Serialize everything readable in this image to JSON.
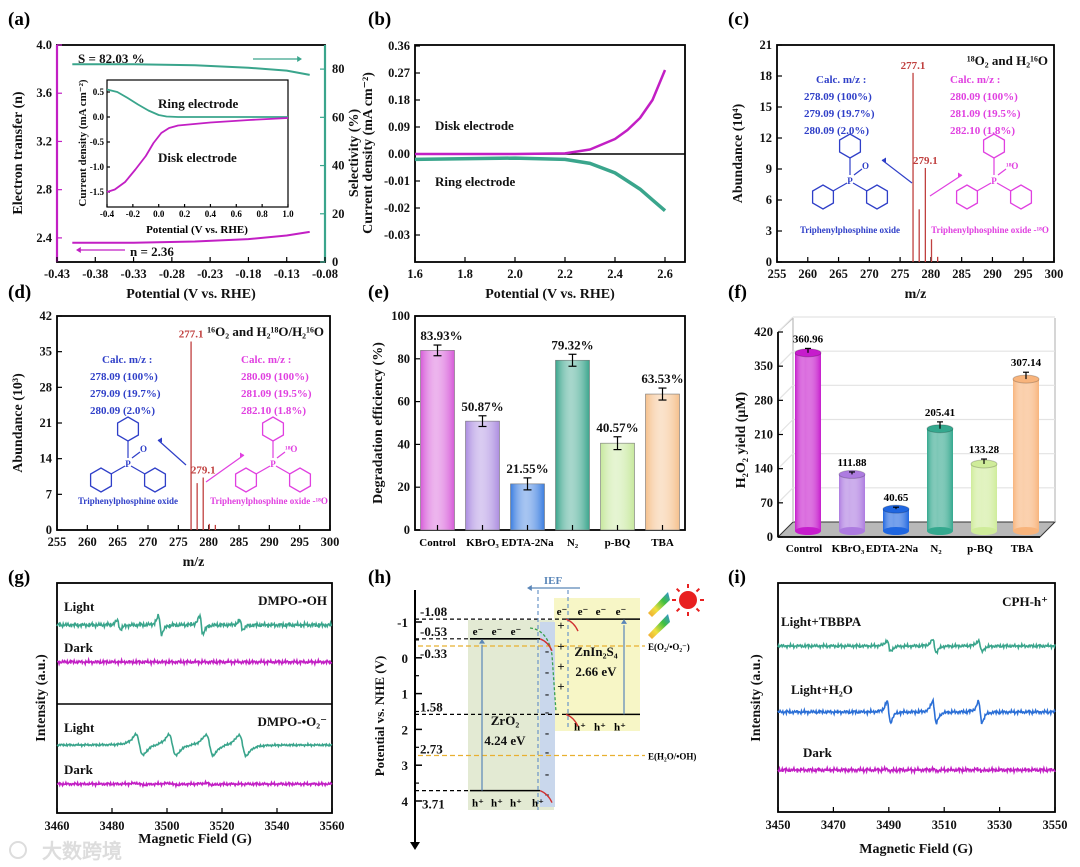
{
  "figure": {
    "panel_labels": [
      "(a)",
      "(b)",
      "(c)",
      "(d)",
      "(e)",
      "(f)",
      "(g)",
      "(h)",
      "(i)"
    ],
    "watermark": "大数跨境",
    "colors": {
      "magenta": "#c21fc4",
      "teal": "#3aa58c",
      "blue": "#2f3fc8",
      "pink": "#e040e0",
      "red": "#c0403f",
      "orange": "#e8b030"
    }
  },
  "chart_data": [
    {
      "type": "line",
      "xlabel": "Potential (V vs. RHE)",
      "ylabel_left": "Electron transfer (n)",
      "ylabel_right": "Selectivity (%)",
      "xlim": [
        -0.43,
        -0.08
      ],
      "ylim_left": [
        2.2,
        4.0
      ],
      "ylim_right": [
        0,
        90
      ],
      "xticks": [
        "-0.43",
        "-0.38",
        "-0.33",
        "-0.28",
        "-0.23",
        "-0.18",
        "-0.13",
        "-0.08"
      ],
      "yticks_left": [
        "2.4",
        "2.8",
        "3.2",
        "3.6",
        "4.0"
      ],
      "yticks_right": [
        "0",
        "20",
        "40",
        "60",
        "80"
      ],
      "series": [
        {
          "name": "Selectivity",
          "axis": "right",
          "points": [
            [
              -0.41,
              82.03
            ],
            [
              -0.33,
              82.0
            ],
            [
              -0.25,
              81.6
            ],
            [
              -0.18,
              80.6
            ],
            [
              -0.13,
              79.4
            ],
            [
              -0.1,
              77.6
            ]
          ]
        },
        {
          "name": "Electron transfer",
          "axis": "left",
          "points": [
            [
              -0.41,
              2.36
            ],
            [
              -0.33,
              2.36
            ],
            [
              -0.25,
              2.37
            ],
            [
              -0.18,
              2.39
            ],
            [
              -0.13,
              2.42
            ],
            [
              -0.1,
              2.45
            ]
          ]
        }
      ],
      "annotations": {
        "selectivity": "S = 82.03 %",
        "n": "n = 2.36"
      },
      "inset": {
        "xlabel": "Potential (V vs. RHE)",
        "ylabel": "Current density (mA cm⁻²)",
        "xlim": [
          -0.4,
          1.0
        ],
        "ylim": [
          -1.8,
          0.74
        ],
        "xticks": [
          "-0.4",
          "-0.2",
          "0.0",
          "0.2",
          "0.4",
          "0.6",
          "0.8",
          "1.0"
        ],
        "yticks": [
          "0.5",
          "0.0",
          "-0.5",
          "-1.0",
          "-1.5"
        ],
        "series": [
          {
            "name": "Ring electrode",
            "points": [
              [
                -0.4,
                0.55
              ],
              [
                -0.32,
                0.5
              ],
              [
                -0.24,
                0.38
              ],
              [
                -0.16,
                0.25
              ],
              [
                -0.08,
                0.13
              ],
              [
                0.0,
                0.04
              ],
              [
                0.06,
                0.01
              ],
              [
                0.15,
                0.0
              ],
              [
                1.0,
                0.0
              ]
            ]
          },
          {
            "name": "Disk electrode",
            "points": [
              [
                -0.4,
                -1.5
              ],
              [
                -0.34,
                -1.45
              ],
              [
                -0.26,
                -1.3
              ],
              [
                -0.18,
                -1.05
              ],
              [
                -0.1,
                -0.78
              ],
              [
                -0.04,
                -0.52
              ],
              [
                0.02,
                -0.32
              ],
              [
                0.08,
                -0.22
              ],
              [
                0.15,
                -0.17
              ],
              [
                0.4,
                -0.11
              ],
              [
                0.7,
                -0.06
              ],
              [
                1.0,
                -0.02
              ]
            ]
          }
        ],
        "labels": {
          "ring": "Ring electrode",
          "disk": "Disk electrode"
        }
      }
    },
    {
      "type": "line",
      "xlabel": "Potential (V vs. RHE)",
      "ylabel": "Current density (mA cm⁻²)",
      "xlim": [
        1.6,
        2.68
      ],
      "xticks": [
        "1.6",
        "1.8",
        "2.0",
        "2.2",
        "2.4",
        "2.6"
      ],
      "yticks": [
        "0.36",
        "0.27",
        "0.18",
        "0.09",
        "0.00",
        "-0.01",
        "-0.02",
        "-0.03"
      ],
      "y_scale": "split: 0.09 per major tick above zero, 0.01 per major tick below zero",
      "series": [
        {
          "name": "Disk electrode",
          "points": [
            [
              1.6,
              0.0
            ],
            [
              2.0,
              0.0
            ],
            [
              2.2,
              0.002
            ],
            [
              2.3,
              0.015
            ],
            [
              2.4,
              0.05
            ],
            [
              2.45,
              0.08
            ],
            [
              2.5,
              0.12
            ],
            [
              2.55,
              0.18
            ],
            [
              2.6,
              0.28
            ]
          ]
        },
        {
          "name": "Ring electrode",
          "points": [
            [
              1.6,
              -0.002
            ],
            [
              2.0,
              -0.0015
            ],
            [
              2.2,
              -0.002
            ],
            [
              2.3,
              -0.0035
            ],
            [
              2.4,
              -0.007
            ],
            [
              2.5,
              -0.013
            ],
            [
              2.55,
              -0.017
            ],
            [
              2.6,
              -0.021
            ]
          ]
        }
      ],
      "labels": {
        "disk": "Disk electrode",
        "ring": "Ring electrode"
      }
    },
    {
      "type": "bar",
      "subtype": "mass spectrum",
      "title": "¹⁸O₂ and H₂¹⁶O",
      "xlabel": "m/z",
      "ylabel": "Abundance (10⁴)",
      "xlim": [
        255,
        300
      ],
      "ylim": [
        0,
        21
      ],
      "xticks": [
        "255",
        "260",
        "265",
        "270",
        "275",
        "280",
        "285",
        "290",
        "295",
        "300"
      ],
      "yticks": [
        "0",
        "3",
        "6",
        "9",
        "12",
        "15",
        "18",
        "21"
      ],
      "peaks": [
        [
          277.1,
          18.3
        ],
        [
          278.1,
          5.1
        ],
        [
          279.1,
          9.1
        ],
        [
          280.1,
          2.2
        ],
        [
          281.1,
          0.5
        ]
      ],
      "peak_labels": [
        "277.1",
        "279.1"
      ],
      "calc_left": {
        "title": "Calc. m/z :",
        "lines": [
          "278.09 (100%)",
          "279.09 (19.7%)",
          "280.09 (2.0%)"
        ],
        "name": "Triphenylphosphine oxide"
      },
      "calc_right": {
        "title": "Calc. m/z :",
        "lines": [
          "280.09 (100%)",
          "281.09 (19.5%)",
          "282.10 (1.8%)"
        ],
        "name": "Triphenylphosphine oxide -¹⁸O"
      },
      "atoms": {
        "P": "P",
        "O": "O",
        "O18": "¹⁸O"
      }
    },
    {
      "type": "bar",
      "subtype": "mass spectrum",
      "title": "¹⁶O₂ and H₂¹⁸O/H₂¹⁶O",
      "xlabel": "m/z",
      "ylabel": "Abundance (10³)",
      "xlim": [
        255,
        300
      ],
      "ylim": [
        0,
        42
      ],
      "xticks": [
        "255",
        "260",
        "265",
        "270",
        "275",
        "280",
        "285",
        "290",
        "295",
        "300"
      ],
      "yticks": [
        "0",
        "7",
        "14",
        "21",
        "28",
        "35",
        "42"
      ],
      "peaks": [
        [
          277.1,
          37.0
        ],
        [
          278.1,
          9.2
        ],
        [
          279.1,
          10.3
        ],
        [
          280.1,
          1.2
        ],
        [
          281.1,
          1.0
        ]
      ],
      "peak_labels": [
        "277.1",
        "279.1"
      ],
      "calc_left": {
        "title": "Calc. m/z :",
        "lines": [
          "278.09 (100%)",
          "279.09 (19.7%)",
          "280.09 (2.0%)"
        ],
        "name": "Triphenylphosphine oxide"
      },
      "calc_right": {
        "title": "Calc. m/z :",
        "lines": [
          "280.09 (100%)",
          "281.09 (19.5%)",
          "282.10 (1.8%)"
        ],
        "name": "Triphenylphosphine oxide -¹⁸O"
      },
      "atoms": {
        "P": "P",
        "O": "O",
        "O18": "¹⁸O"
      }
    },
    {
      "type": "bar",
      "ylabel": "Degradation efficiency (%)",
      "ylim": [
        0,
        100
      ],
      "yticks": [
        "0",
        "20",
        "40",
        "60",
        "80",
        "100"
      ],
      "categories": [
        "Control",
        "KBrO₃",
        "EDTA-2Na",
        "N₂",
        "p-BQ",
        "TBA"
      ],
      "values": [
        83.93,
        50.87,
        21.55,
        79.32,
        40.57,
        63.53
      ],
      "errors": [
        2.5,
        2.5,
        2.8,
        2.8,
        3.0,
        2.8
      ],
      "value_labels": [
        "83.93%",
        "50.87%",
        "21.55%",
        "79.32%",
        "40.57%",
        "63.53%"
      ],
      "colors": [
        "#d65ad8",
        "#ab8ce0",
        "#3a7de0",
        "#3aa58c",
        "#c6e89c",
        "#f5c08c"
      ]
    },
    {
      "type": "bar",
      "style": "3d-cylinder",
      "ylabel": "H₂O₂ yield (μM)",
      "ylim": [
        0,
        420
      ],
      "yticks": [
        "0",
        "70",
        "140",
        "210",
        "280",
        "350",
        "420"
      ],
      "categories": [
        "Control",
        "KBrO₃",
        "EDTA-2Na",
        "N₂",
        "p-BQ",
        "TBA"
      ],
      "values": [
        360.96,
        111.88,
        40.65,
        205.41,
        133.28,
        307.14
      ],
      "errors": [
        9,
        5,
        4,
        14,
        10,
        14
      ],
      "value_labels": [
        "360.96",
        "111.88",
        "40.65",
        "205.41",
        "133.28",
        "307.14"
      ],
      "colors": [
        "#c61ccc",
        "#ad7be0",
        "#1f66e0",
        "#34a88e",
        "#cfec9a",
        "#f8b47c"
      ]
    },
    {
      "type": "line",
      "subtype": "EPR spectra",
      "xlabel": "Magnetic Field (G)",
      "ylabel": "Intensity (a.u.)",
      "xlim": [
        3460,
        3560
      ],
      "xticks": [
        "3460",
        "3480",
        "3500",
        "3520",
        "3540",
        "3560"
      ],
      "subplots": [
        {
          "title": "DMPO-•OH",
          "series": [
            {
              "name": "Light",
              "color": "#3aa58c",
              "linewidths_G": 1.0,
              "lines": [
                [
                  3482.5,
                  0.5
                ],
                [
                  3497.5,
                  1.0
                ],
                [
                  3512.5,
                  1.0
                ],
                [
                  3527.0,
                  0.5
                ]
              ]
            },
            {
              "name": "Dark",
              "color": "#c21fc4",
              "lines": []
            }
          ]
        },
        {
          "title": "DMPO-•O₂⁻",
          "series": [
            {
              "name": "Light",
              "color": "#3aa58c",
              "linewidths_G": 2.2,
              "lines": [
                [
                  3490,
                  1.0
                ],
                [
                  3502,
                  1.0
                ],
                [
                  3515.5,
                  1.0
                ],
                [
                  3527.5,
                  1.0
                ]
              ]
            },
            {
              "name": "Dark",
              "color": "#c21fc4",
              "lines": [
                [
                  3490,
                  0.08
                ],
                [
                  3502,
                  0.08
                ],
                [
                  3515.5,
                  0.08
                ]
              ]
            }
          ]
        }
      ]
    },
    {
      "type": "diagram",
      "subtype": "band structure",
      "ylabel": "Potential vs. NHE (V)",
      "ylim": [
        -1.8,
        4.4
      ],
      "yticks": [
        "-1",
        "0",
        "1",
        "2",
        "3",
        "4"
      ],
      "materials": [
        {
          "name": "ZrO₂",
          "gap": "4.24 eV",
          "cb": -0.53,
          "vb": 3.71,
          "cb_label": "-0.53",
          "vb_label": "3.71"
        },
        {
          "name": "ZnIn₂S₄",
          "gap": "2.66 eV",
          "cb": -1.08,
          "vb": 1.58,
          "cb_label": "-1.08",
          "vb_label": "1.58"
        }
      ],
      "redox": [
        {
          "label": "E(O₂/•O₂⁻)",
          "value": -0.33,
          "value_label": "-0.33"
        },
        {
          "label": "E(H₂O/•OH)",
          "value": 2.73,
          "value_label": "2.73"
        }
      ],
      "carriers": {
        "electron": "e⁻",
        "hole": "h⁺",
        "plus": "+",
        "minus": "-"
      },
      "ief_label": "IEF"
    },
    {
      "type": "line",
      "subtype": "EPR spectra",
      "title": "CPH-h⁺",
      "xlabel": "Magnetic Field (G)",
      "ylabel": "Intensity (a.u.)",
      "xlim": [
        3450,
        3550
      ],
      "xticks": [
        "3450",
        "3470",
        "3490",
        "3510",
        "3530",
        "3550"
      ],
      "series": [
        {
          "name": "Light+TBBPA",
          "color": "#3aa58c",
          "lines": [
            [
              3490,
              0.6
            ],
            [
              3506.5,
              0.7
            ],
            [
              3523,
              0.6
            ]
          ]
        },
        {
          "name": "Light+H₂O",
          "color": "#2b6fd6",
          "lines": [
            [
              3490,
              1.0
            ],
            [
              3506.5,
              1.1
            ],
            [
              3523,
              1.0
            ]
          ]
        },
        {
          "name": "Dark",
          "color": "#c21fc4",
          "lines": [
            [
              3490,
              0.12
            ],
            [
              3506.5,
              0.12
            ],
            [
              3523,
              0.1
            ]
          ]
        }
      ]
    }
  ]
}
